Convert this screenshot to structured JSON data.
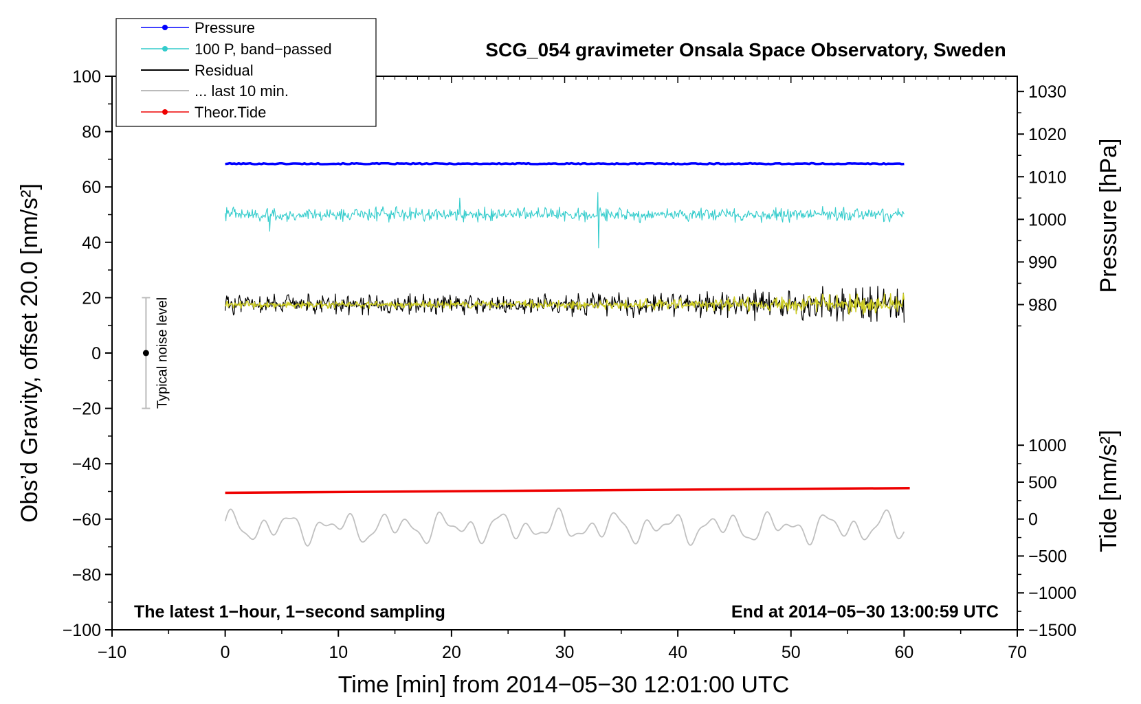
{
  "chart_data": {
    "type": "line",
    "title": "SCG_054 gravimeter Onsala Space Observatory, Sweden",
    "xlabel": "Time [min] from 2014−05−30 12:01:00 UTC",
    "ylabel_left": "Obs’d Gravity, offset 20.0 [nm/s²]",
    "ylabel_pressure": "Pressure [hPa]",
    "ylabel_tide": "Tide [nm/s²]",
    "xlim": [
      -10,
      70
    ],
    "ylim": [
      -100,
      100
    ],
    "x_ticks": [
      -10,
      0,
      10,
      20,
      30,
      40,
      50,
      60,
      70
    ],
    "x_tick_labels": [
      "−10",
      "0",
      "10",
      "20",
      "30",
      "40",
      "50",
      "60",
      "70"
    ],
    "y_ticks": [
      -100,
      -80,
      -60,
      -40,
      -20,
      0,
      20,
      40,
      60,
      80,
      100
    ],
    "y_tick_labels": [
      "−100",
      "−80",
      "−60",
      "−40",
      "−20",
      "0",
      "20",
      "40",
      "60",
      "80",
      "100"
    ],
    "pressure_axis": {
      "ticks": [
        980,
        990,
        1000,
        1010,
        1020,
        1030
      ],
      "tick_labels": [
        "980",
        "990",
        "1000",
        "1010",
        "1020",
        "1030"
      ],
      "map": {
        "value_a": 980,
        "y_a": 17.5,
        "value_b": 1030,
        "y_b": 94.5
      }
    },
    "tide_axis": {
      "ticks": [
        -1500,
        -1000,
        -500,
        0,
        500,
        1000
      ],
      "tick_labels": [
        "−1500",
        "−1000",
        "−500",
        "0",
        "500",
        "1000"
      ],
      "map": {
        "value_a": -1500,
        "y_a": -100,
        "value_b": 1000,
        "y_b": -33.3
      }
    },
    "legend": [
      {
        "label": "Pressure",
        "color": "#0000ff",
        "marker": true
      },
      {
        "label": "100 P, band−passed",
        "color": "#33cccc",
        "marker": true
      },
      {
        "label": "Residual",
        "color": "#000000",
        "marker": false
      },
      {
        "label": "... last 10 min.",
        "color": "#bbbbbb",
        "marker": false
      },
      {
        "label": "Theor.Tide",
        "color": "#ee0000",
        "marker": true
      }
    ],
    "series": [
      {
        "name": "Pressure",
        "color": "#0000ff",
        "x_range": [
          0,
          60
        ],
        "baseline": 68.4,
        "amplitude": 0.4,
        "style": "flat"
      },
      {
        "name": "100 P, band-passed",
        "color": "#33cccc",
        "x_range": [
          0,
          60
        ],
        "baseline": 50,
        "amplitude": 3,
        "spikes": [
          [
            3.9,
            44
          ],
          [
            32.9,
            58
          ],
          [
            33.0,
            38
          ],
          [
            20.7,
            56
          ]
        ],
        "style": "noise"
      },
      {
        "name": "Residual",
        "color": "#000000",
        "x_range": [
          0,
          60
        ],
        "baseline": 17.5,
        "amplitude": 4,
        "amplitude_end": 8,
        "style": "noise"
      },
      {
        "name": "... last 10 min. (overlay)",
        "color": "#cccc22",
        "x_range": [
          0,
          60
        ],
        "baseline": 17.5,
        "amplitude": 1.5,
        "amplitude_end": 5,
        "style": "noise"
      },
      {
        "name": "Theor.Tide",
        "color": "#ee0000",
        "x": [
          0,
          60.5
        ],
        "y": [
          -50.5,
          -48.8
        ],
        "style": "line"
      },
      {
        "name": "... last 10 min.",
        "color": "#c0c0c0",
        "x_range": [
          0,
          60
        ],
        "baseline": -63,
        "amplitude": 5,
        "style": "wave"
      }
    ],
    "noise_bar": {
      "x": -7,
      "y_low": -20,
      "y_high": 20,
      "center": 0,
      "label": "Typical noise level"
    },
    "annotation_left": "The latest 1−hour, 1−second sampling",
    "annotation_right": "End at 2014−05−30 13:00:59 UTC"
  }
}
